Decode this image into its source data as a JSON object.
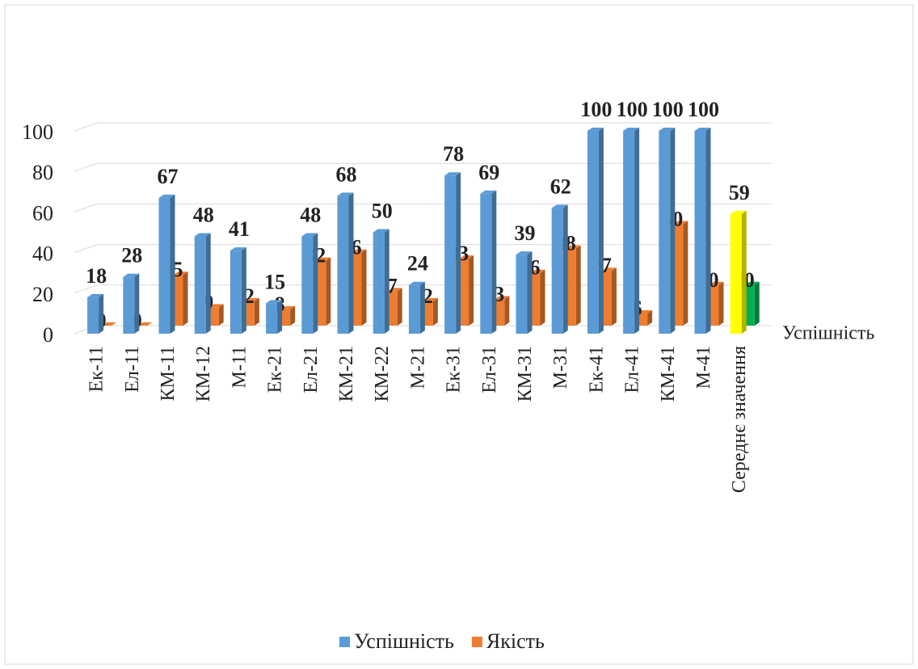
{
  "chart_data": {
    "type": "bar3d",
    "categories": [
      "Ек-11",
      "Ел-11",
      "КМ-11",
      "КМ-12",
      "М-11",
      "Ек-21",
      "Ел-21",
      "КМ-21",
      "КМ-22",
      "М-21",
      "Ек-31",
      "Ел-31",
      "КМ-31",
      "М-31",
      "Ек-41",
      "Ел-41",
      "КМ-41",
      "М-41",
      "Середнє значення"
    ],
    "series": [
      {
        "name": "Успішність",
        "color": "#5b9bd5",
        "colors": [
          "#5b9bd5",
          "#5b9bd5",
          "#5b9bd5",
          "#5b9bd5",
          "#5b9bd5",
          "#5b9bd5",
          "#5b9bd5",
          "#5b9bd5",
          "#5b9bd5",
          "#5b9bd5",
          "#5b9bd5",
          "#5b9bd5",
          "#5b9bd5",
          "#5b9bd5",
          "#5b9bd5",
          "#5b9bd5",
          "#5b9bd5",
          "#5b9bd5",
          "#ffff00"
        ],
        "values": [
          18,
          28,
          67,
          48,
          41,
          15,
          48,
          68,
          50,
          24,
          78,
          69,
          39,
          62,
          100,
          100,
          100,
          100,
          59
        ]
      },
      {
        "name": "Якість",
        "color": "#ed7d31",
        "colors": [
          "#ed7d31",
          "#ed7d31",
          "#ed7d31",
          "#ed7d31",
          "#ed7d31",
          "#ed7d31",
          "#ed7d31",
          "#ed7d31",
          "#ed7d31",
          "#ed7d31",
          "#ed7d31",
          "#ed7d31",
          "#ed7d31",
          "#ed7d31",
          "#ed7d31",
          "#ed7d31",
          "#ed7d31",
          "#ed7d31",
          "#00b050"
        ],
        "values": [
          0,
          0,
          25,
          9,
          12,
          8,
          32,
          36,
          17,
          12,
          33,
          13,
          26,
          38,
          27,
          6,
          50,
          20,
          20
        ]
      }
    ],
    "series_axis_label": "Успішність",
    "ylim": [
      0,
      100
    ],
    "yticks": [
      0,
      20,
      40,
      60,
      80,
      100
    ],
    "grid": true,
    "legend": "bottom"
  }
}
